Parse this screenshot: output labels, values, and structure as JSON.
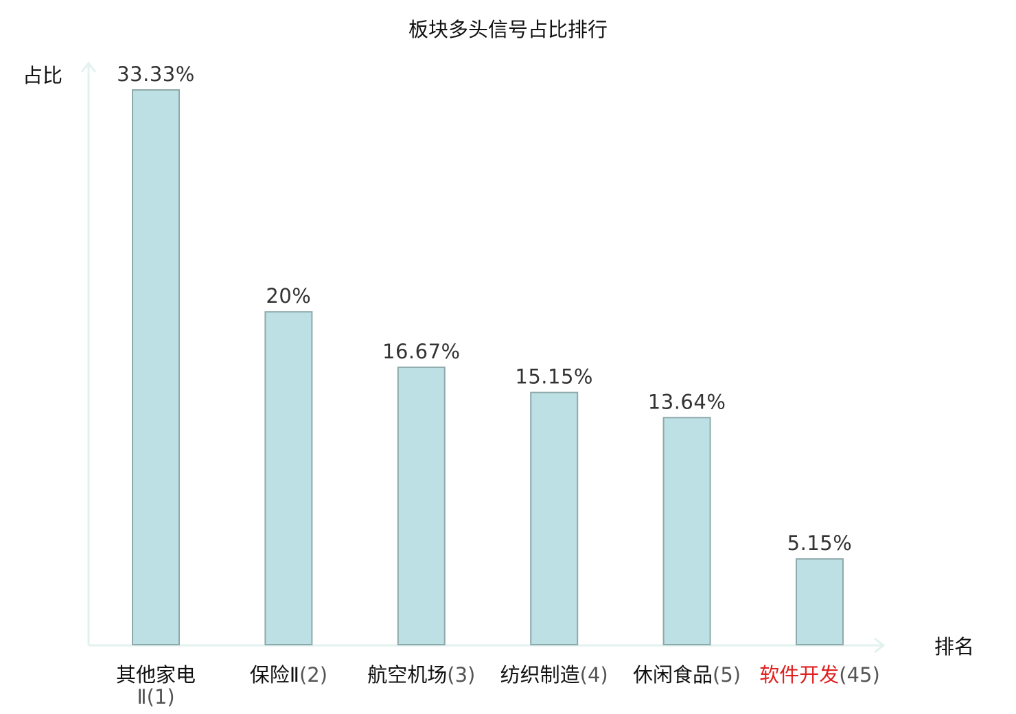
{
  "colors": {
    "bar_fill": "#bce0e3",
    "bar_stroke": "#8ea9ab",
    "axis": "#e1f2ef",
    "value_text": "#333333",
    "label_text": "#111111",
    "highlight": "#e02020"
  },
  "chart_data": {
    "type": "bar",
    "title": "板块多头信号占比排行",
    "ylabel": "占比",
    "xlabel": "排名",
    "categories": [
      {
        "name": "其他家电Ⅱ",
        "rank": "(1)",
        "highlight": false,
        "wrap": true
      },
      {
        "name": "保险Ⅱ",
        "rank": "(2)",
        "highlight": false,
        "wrap": false
      },
      {
        "name": "航空机场",
        "rank": "(3)",
        "highlight": false,
        "wrap": false
      },
      {
        "name": "纺织制造",
        "rank": "(4)",
        "highlight": false,
        "wrap": false
      },
      {
        "name": "休闲食品",
        "rank": "(5)",
        "highlight": false,
        "wrap": false
      },
      {
        "name": "软件开发",
        "rank": "(45)",
        "highlight": true,
        "wrap": false
      }
    ],
    "values": [
      33.33,
      20,
      16.67,
      15.15,
      13.64,
      5.15
    ],
    "value_labels": [
      "33.33%",
      "20%",
      "16.67%",
      "15.15%",
      "13.64%",
      "5.15%"
    ],
    "ylim": [
      0,
      34.5
    ],
    "grid": false,
    "legend": "none"
  }
}
